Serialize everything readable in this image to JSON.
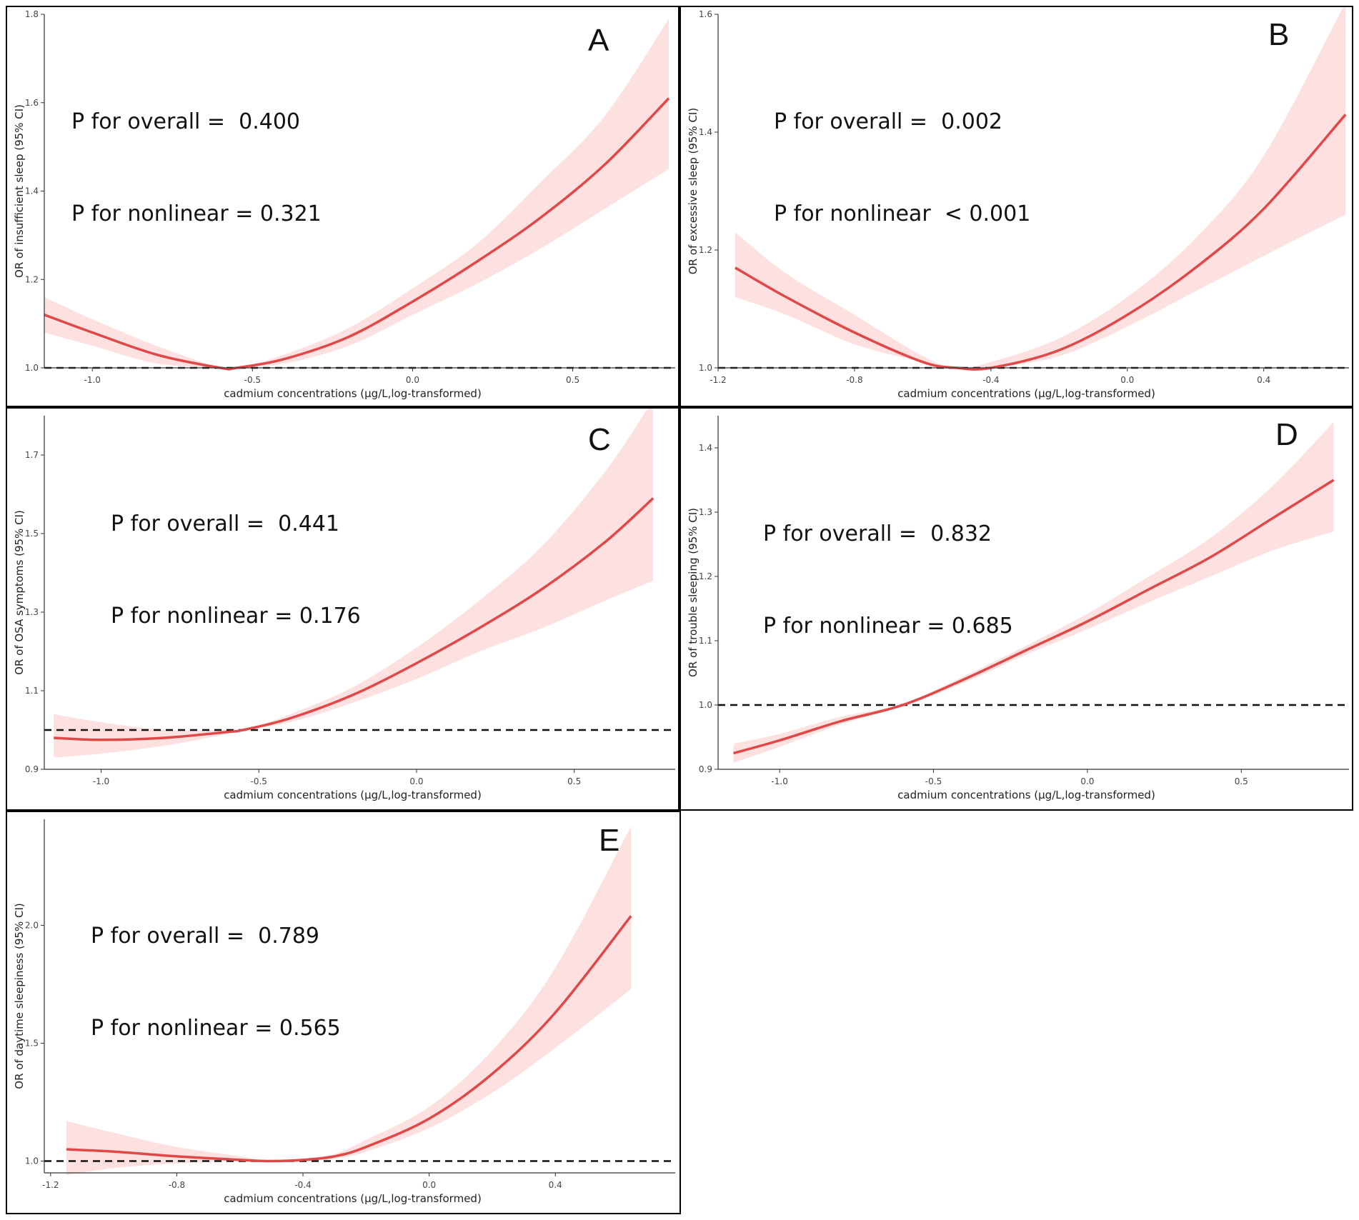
{
  "figure_title": "Restricted cubic spline associations of cadmium concentrations with sleep outcomes",
  "colors": {
    "curve": "#e04848",
    "band": "#fde0e0",
    "axis": "#333333",
    "reference": "#111111"
  },
  "chart_data": [
    {
      "panel": "A",
      "type": "line",
      "xlabel": "cadmium concentrations (µg/L,log-transformed)",
      "ylabel": "OR of insufficient sleep (95% CI)",
      "overall_text": "P for overall =  0.400",
      "nonlinear_text": "P for nonlinear = 0.321",
      "xlim": [
        -1.15,
        0.82
      ],
      "ylim": [
        1.0,
        1.8
      ],
      "x_ticks": [
        -1.0,
        -0.5,
        0.0,
        0.5
      ],
      "x_tick_labels": [
        "-1.0",
        "-0.5",
        "0.0",
        "0.5"
      ],
      "y_ticks": [
        1.0,
        1.2,
        1.4,
        1.6,
        1.8
      ],
      "y_tick_labels": [
        "1.0",
        "1.2",
        "1.4",
        "1.6",
        "1.8"
      ],
      "reference_line": 1.0,
      "x": [
        -1.15,
        -1.0,
        -0.8,
        -0.6,
        -0.55,
        -0.4,
        -0.2,
        0.0,
        0.2,
        0.4,
        0.6,
        0.8
      ],
      "or": [
        1.12,
        1.08,
        1.03,
        1.0,
        1.0,
        1.02,
        1.07,
        1.15,
        1.24,
        1.34,
        1.46,
        1.61
      ],
      "lower": [
        1.08,
        1.05,
        1.01,
        1.0,
        1.0,
        1.01,
        1.05,
        1.12,
        1.19,
        1.27,
        1.36,
        1.45
      ],
      "upper": [
        1.16,
        1.11,
        1.05,
        1.0,
        1.0,
        1.03,
        1.09,
        1.18,
        1.28,
        1.42,
        1.57,
        1.79
      ]
    },
    {
      "panel": "B",
      "type": "line",
      "xlabel": "cadmium concentrations (µg/L,log-transformed)",
      "ylabel": "OR of excessive sleep (95% CI)",
      "overall_text": "P for overall =  0.002",
      "nonlinear_text": "P for nonlinear  < 0.001",
      "xlim": [
        -1.2,
        0.65
      ],
      "ylim": [
        1.0,
        1.6
      ],
      "x_ticks": [
        -1.2,
        -0.8,
        -0.4,
        0.0,
        0.4
      ],
      "x_tick_labels": [
        "-1.2",
        "-0.8",
        "-0.4",
        "0.0",
        "0.4"
      ],
      "y_ticks": [
        1.0,
        1.2,
        1.4,
        1.6
      ],
      "y_tick_labels": [
        "1.0",
        "1.2",
        "1.4",
        "1.6"
      ],
      "reference_line": 1.0,
      "x": [
        -1.15,
        -1.0,
        -0.8,
        -0.6,
        -0.5,
        -0.4,
        -0.2,
        0.0,
        0.2,
        0.4,
        0.64
      ],
      "or": [
        1.17,
        1.12,
        1.06,
        1.01,
        1.0,
        1.0,
        1.03,
        1.09,
        1.17,
        1.27,
        1.43
      ],
      "lower": [
        1.12,
        1.09,
        1.04,
        1.01,
        1.0,
        1.0,
        1.02,
        1.07,
        1.13,
        1.19,
        1.26
      ],
      "upper": [
        1.23,
        1.16,
        1.09,
        1.02,
        1.0,
        1.01,
        1.05,
        1.12,
        1.22,
        1.36,
        1.62
      ]
    },
    {
      "panel": "C",
      "type": "line",
      "xlabel": "cadmium concentrations (µg/L,log-transformed)",
      "ylabel": "OR of OSA symptoms (95% CI)",
      "overall_text": "P for overall =  0.441",
      "nonlinear_text": "P for nonlinear = 0.176",
      "xlim": [
        -1.18,
        0.82
      ],
      "ylim": [
        0.9,
        1.8
      ],
      "x_ticks": [
        -1.0,
        -0.5,
        0.0,
        0.5
      ],
      "x_tick_labels": [
        "-1.0",
        "-0.5",
        "0.0",
        "0.5"
      ],
      "y_ticks": [
        0.9,
        1.1,
        1.3,
        1.5,
        1.7
      ],
      "y_tick_labels": [
        "0.9",
        "1.1",
        "1.3",
        "1.5",
        "1.7"
      ],
      "reference_line": 1.0,
      "x": [
        -1.15,
        -1.0,
        -0.8,
        -0.6,
        -0.55,
        -0.4,
        -0.2,
        0.0,
        0.2,
        0.4,
        0.6,
        0.75
      ],
      "or": [
        0.98,
        0.975,
        0.98,
        0.995,
        1.0,
        1.03,
        1.09,
        1.17,
        1.26,
        1.36,
        1.48,
        1.59
      ],
      "lower": [
        0.93,
        0.94,
        0.96,
        0.99,
        1.0,
        1.02,
        1.07,
        1.13,
        1.2,
        1.26,
        1.33,
        1.38
      ],
      "upper": [
        1.04,
        1.02,
        1.0,
        1.0,
        1.0,
        1.04,
        1.11,
        1.21,
        1.33,
        1.47,
        1.66,
        1.84
      ]
    },
    {
      "panel": "D",
      "type": "line",
      "xlabel": "cadmium concentrations (µg/L,log-transformed)",
      "ylabel": "OR of trouble sleeping (95% CI)",
      "overall_text": "P for overall =  0.832",
      "nonlinear_text": "P for nonlinear = 0.685",
      "xlim": [
        -1.2,
        0.85
      ],
      "ylim": [
        0.9,
        1.45
      ],
      "x_ticks": [
        -1.0,
        -0.5,
        0.0,
        0.5
      ],
      "x_tick_labels": [
        "-1.0",
        "-0.5",
        "0.0",
        "0.5"
      ],
      "y_ticks": [
        0.9,
        1.0,
        1.1,
        1.2,
        1.3,
        1.4
      ],
      "y_tick_labels": [
        "0.9",
        "1.0",
        "1.1",
        "1.2",
        "1.3",
        "1.4"
      ],
      "reference_line": 1.0,
      "x": [
        -1.15,
        -1.0,
        -0.8,
        -0.6,
        -0.4,
        -0.2,
        0.0,
        0.2,
        0.4,
        0.6,
        0.8
      ],
      "or": [
        0.925,
        0.945,
        0.975,
        1.0,
        1.04,
        1.085,
        1.13,
        1.18,
        1.23,
        1.29,
        1.35
      ],
      "lower": [
        0.91,
        0.935,
        0.97,
        0.998,
        1.035,
        1.078,
        1.118,
        1.16,
        1.2,
        1.24,
        1.27
      ],
      "upper": [
        0.94,
        0.955,
        0.982,
        1.002,
        1.045,
        1.092,
        1.142,
        1.2,
        1.26,
        1.34,
        1.44
      ]
    },
    {
      "panel": "E",
      "type": "line",
      "xlabel": "cadmium concentrations (µg/L,log-transformed)",
      "ylabel": "OR of daytime sleepiness (95% CI)",
      "overall_text": "P for overall =  0.789",
      "nonlinear_text": "P for nonlinear = 0.565",
      "xlim": [
        -1.22,
        0.78
      ],
      "ylim": [
        0.95,
        2.45
      ],
      "x_ticks": [
        -1.2,
        -0.8,
        -0.4,
        0.0,
        0.4
      ],
      "x_tick_labels": [
        "-1.2",
        "-0.8",
        "-0.4",
        "0.0",
        "0.4"
      ],
      "y_ticks": [
        1.0,
        1.5,
        2.0
      ],
      "y_tick_labels": [
        "1.0",
        "1.5",
        "2.0"
      ],
      "reference_line": 1.0,
      "x": [
        -1.15,
        -1.0,
        -0.8,
        -0.6,
        -0.5,
        -0.4,
        -0.3,
        -0.2,
        0.0,
        0.2,
        0.4,
        0.64
      ],
      "or": [
        1.05,
        1.04,
        1.02,
        1.005,
        1.0,
        1.005,
        1.02,
        1.06,
        1.18,
        1.37,
        1.63,
        2.04
      ],
      "lower": [
        0.94,
        0.97,
        0.99,
        1.0,
        1.0,
        1.0,
        1.01,
        1.04,
        1.14,
        1.29,
        1.48,
        1.73
      ],
      "upper": [
        1.17,
        1.12,
        1.06,
        1.02,
        1.0,
        1.01,
        1.03,
        1.09,
        1.23,
        1.47,
        1.82,
        2.42
      ]
    }
  ]
}
